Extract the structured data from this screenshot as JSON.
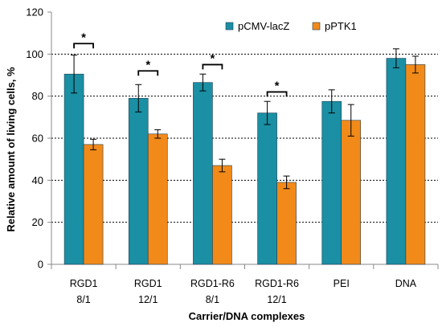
{
  "chart_data": {
    "type": "bar",
    "title": "",
    "xlabel": "Carrier/DNA complexes",
    "ylabel": "Relative amount of living cells, %",
    "ylim": [
      0,
      120
    ],
    "yticks": [
      0,
      20,
      40,
      60,
      80,
      100,
      120
    ],
    "grid": "horizontal dashed at 20, 40, 60, 80, 100",
    "legend_position": "top-center",
    "categories": [
      [
        "RGD1",
        "8/1"
      ],
      [
        "RGD1",
        "12/1"
      ],
      [
        "RGD1-R6",
        "8/1"
      ],
      [
        "RGD1-R6",
        "12/1"
      ],
      [
        "PEI",
        ""
      ],
      [
        "DNA",
        ""
      ]
    ],
    "series": [
      {
        "name": "pCMV-lacZ",
        "color": "#1b8fa3",
        "values": [
          90.5,
          79,
          86.5,
          72,
          77.5,
          98
        ],
        "errors": [
          9,
          6.5,
          4,
          5.5,
          5.5,
          4.5
        ]
      },
      {
        "name": "pPTK1",
        "color": "#f28a1a",
        "values": [
          57,
          62,
          47,
          39,
          68.5,
          95
        ],
        "errors": [
          2.5,
          2,
          3,
          3,
          7.5,
          4
        ]
      }
    ],
    "significance": [
      {
        "category_index": 0,
        "label": "*",
        "bracket_y": 105
      },
      {
        "category_index": 1,
        "label": "*",
        "bracket_y": 92
      },
      {
        "category_index": 2,
        "label": "*",
        "bracket_y": 95
      },
      {
        "category_index": 3,
        "label": "*",
        "bracket_y": 82
      }
    ]
  }
}
